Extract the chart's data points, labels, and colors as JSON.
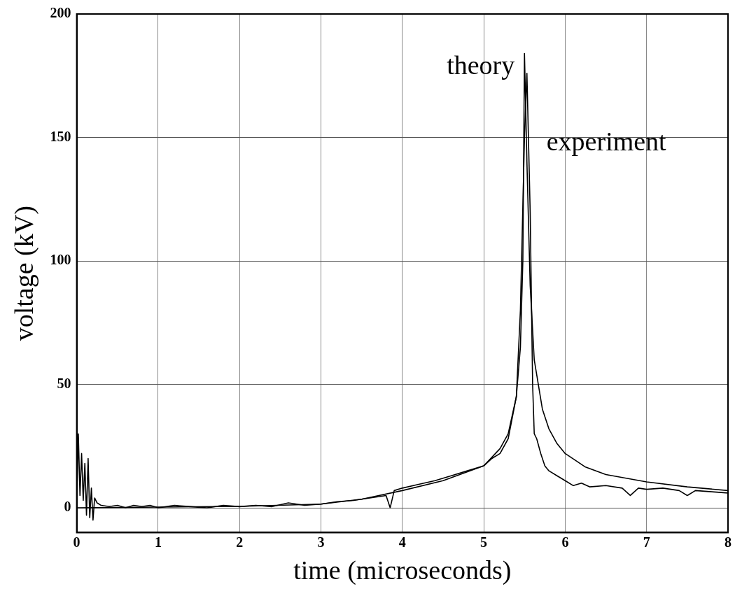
{
  "chart_data": {
    "type": "line",
    "xlabel": "time (microseconds)",
    "ylabel": "voltage (kV)",
    "xlim": [
      0,
      8
    ],
    "ylim": [
      -10,
      200
    ],
    "xticks": [
      0,
      1,
      2,
      3,
      4,
      5,
      6,
      7,
      8
    ],
    "yticks": [
      0,
      50,
      100,
      150,
      200
    ],
    "grid": true,
    "legend": false,
    "marker": "none",
    "line_style": "solid",
    "series": [
      {
        "name": "theory",
        "color": "#000000",
        "x": [
          0,
          1,
          2,
          3,
          3.5,
          4,
          4.5,
          5,
          5.2,
          5.3,
          5.4,
          5.45,
          5.48,
          5.5,
          5.53,
          5.57,
          5.62,
          5.67,
          5.72,
          5.8,
          5.9,
          6,
          6.25,
          6.5,
          7,
          7.5,
          8
        ],
        "values": [
          0,
          0.3,
          0.6,
          1.5,
          3.5,
          7,
          11,
          17,
          24,
          30,
          45,
          65,
          100,
          184,
          140,
          90,
          60,
          50,
          40,
          32,
          26,
          22,
          16.5,
          13.5,
          10.5,
          8.5,
          7
        ]
      },
      {
        "name": "experiment",
        "color": "#000000",
        "x": [
          0,
          0.02,
          0.04,
          0.06,
          0.08,
          0.1,
          0.12,
          0.14,
          0.16,
          0.18,
          0.2,
          0.22,
          0.25,
          0.3,
          0.4,
          0.5,
          0.6,
          0.7,
          0.8,
          0.9,
          1,
          1.2,
          1.4,
          1.6,
          1.8,
          2,
          2.2,
          2.4,
          2.6,
          2.8,
          3,
          3.2,
          3.4,
          3.6,
          3.8,
          3.85,
          3.9,
          4,
          4.2,
          4.4,
          4.6,
          4.8,
          5,
          5.1,
          5.2,
          5.3,
          5.4,
          5.45,
          5.5,
          5.53,
          5.57,
          5.6,
          5.62,
          5.65,
          5.7,
          5.75,
          5.8,
          5.9,
          6,
          6.1,
          6.2,
          6.3,
          6.5,
          6.7,
          6.8,
          6.9,
          7,
          7.2,
          7.4,
          7.5,
          7.6,
          7.8,
          8
        ],
        "values": [
          0,
          30,
          5,
          22,
          3,
          18,
          -3,
          20,
          -4,
          8,
          -5,
          4,
          2,
          1,
          0.5,
          1,
          0,
          1,
          0.5,
          1,
          0,
          1,
          0.5,
          0,
          1,
          0.5,
          1,
          0.5,
          2,
          1,
          1.5,
          2.5,
          3,
          4,
          5,
          0,
          7,
          8,
          9.5,
          11,
          13,
          15,
          17,
          20,
          22,
          28,
          45,
          80,
          150,
          176,
          120,
          50,
          30,
          28,
          22,
          17,
          15,
          13,
          11,
          9,
          10,
          8.5,
          9,
          8,
          5,
          8,
          7.5,
          8,
          7,
          5,
          7,
          6.5,
          6
        ]
      }
    ]
  }
}
